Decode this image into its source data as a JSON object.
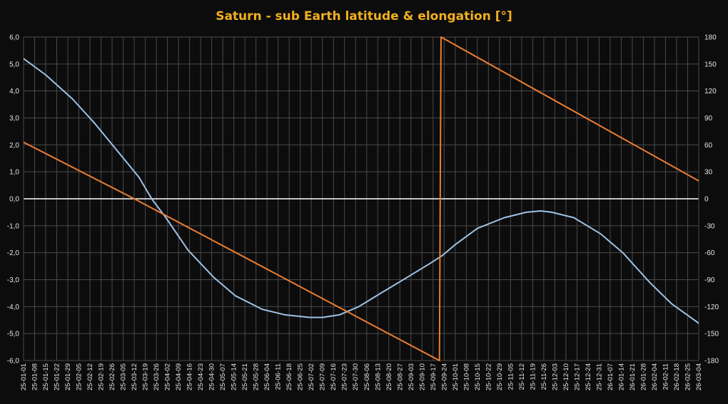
{
  "chart_data": {
    "type": "line",
    "title": "Saturn  - sub  Earth  latitude  &  elongation  [°]",
    "colors": {
      "background": "#0c0c0c",
      "grid": "#4a4a4a",
      "zero_line": "#ffffff",
      "title": "#f2b01f",
      "latitude": "#9dc3e6",
      "elongation": "#ed7d31"
    },
    "grid": true,
    "legend": "none",
    "y_left": {
      "ylim": [
        -6,
        6
      ],
      "ticks": [
        "6,0",
        "5,0",
        "4,0",
        "3,0",
        "2,0",
        "1,0",
        "0,0",
        "-1,0",
        "-2,0",
        "-3,0",
        "-4,0",
        "-5,0",
        "-6,0"
      ]
    },
    "y_right": {
      "ylim": [
        -180,
        180
      ],
      "ticks": [
        "180",
        "150",
        "120",
        "90",
        "60",
        "30",
        "0",
        "-30",
        "-60",
        "-90",
        "-120",
        "-150",
        "-180"
      ]
    },
    "x": {
      "start": "2025-01-01",
      "end": "2026-03-04",
      "tick_labels": [
        "25-01-01",
        "25-01-08",
        "25-01-15",
        "25-01-22",
        "25-01-29",
        "25-02-05",
        "25-02-12",
        "25-02-19",
        "25-02-26",
        "25-03-05",
        "25-03-12",
        "25-03-19",
        "25-03-26",
        "25-04-02",
        "25-04-09",
        "25-04-16",
        "25-04-23",
        "25-04-30",
        "25-05-07",
        "25-05-14",
        "25-05-21",
        "25-05-28",
        "25-06-04",
        "25-06-11",
        "25-06-18",
        "25-06-25",
        "25-07-02",
        "25-07-09",
        "25-07-16",
        "25-07-23",
        "25-07-30",
        "25-08-06",
        "25-08-13",
        "25-08-20",
        "25-08-27",
        "25-09-03",
        "25-09-10",
        "25-09-17",
        "25-09-24",
        "25-10-01",
        "25-10-08",
        "25-10-15",
        "25-10-22",
        "25-10-29",
        "25-11-05",
        "25-11-12",
        "25-11-19",
        "25-11-26",
        "25-12-03",
        "25-12-10",
        "25-12-17",
        "25-12-24",
        "25-12-31",
        "26-01-07",
        "26-01-14",
        "26-01-21",
        "26-01-28",
        "26-02-04",
        "26-02-11",
        "26-02-18",
        "26-02-25",
        "26-03-04"
      ]
    },
    "series": [
      {
        "key": "latitude",
        "axis": "left",
        "x": [
          "2025-01-01",
          "2025-01-15",
          "2025-02-01",
          "2025-02-15",
          "2025-03-01",
          "2025-03-15",
          "2025-03-23",
          "2025-04-01",
          "2025-04-15",
          "2025-05-01",
          "2025-05-15",
          "2025-06-01",
          "2025-06-15",
          "2025-07-01",
          "2025-07-09",
          "2025-07-20",
          "2025-08-01",
          "2025-08-15",
          "2025-09-01",
          "2025-09-15",
          "2025-09-23",
          "2025-10-01",
          "2025-10-15",
          "2025-11-01",
          "2025-11-15",
          "2025-11-24",
          "2025-12-01",
          "2025-12-15",
          "2026-01-01",
          "2026-01-15",
          "2026-02-01",
          "2026-02-15",
          "2026-03-06"
        ],
        "values": [
          5.2,
          4.6,
          3.7,
          2.8,
          1.8,
          0.8,
          0.0,
          -0.7,
          -1.9,
          -2.9,
          -3.6,
          -4.1,
          -4.3,
          -4.4,
          -4.4,
          -4.3,
          -4.0,
          -3.5,
          -2.9,
          -2.4,
          -2.1,
          -1.7,
          -1.1,
          -0.7,
          -0.5,
          -0.45,
          -0.5,
          -0.7,
          -1.3,
          -2.0,
          -3.1,
          -3.9,
          -4.7
        ]
      },
      {
        "key": "elongation",
        "axis": "right",
        "x": [
          "2025-01-01",
          "2025-03-12",
          "2025-09-21",
          "2025-09-22",
          "2026-03-06"
        ],
        "values": [
          63,
          0,
          -180,
          180,
          18
        ]
      }
    ]
  }
}
